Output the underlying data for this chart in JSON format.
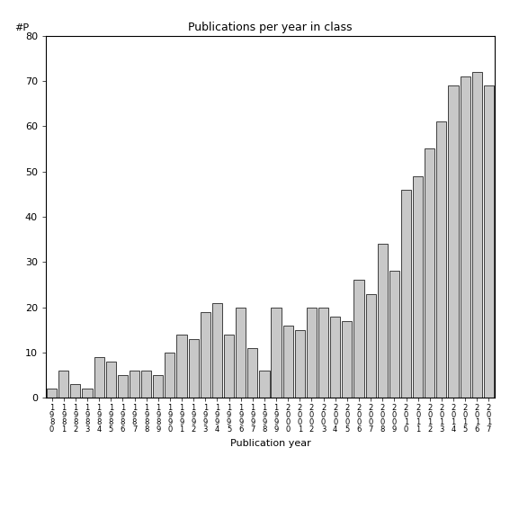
{
  "title": "Publications per year in class",
  "xlabel": "Publication year",
  "ylabel": "#P",
  "ylim": [
    0,
    80
  ],
  "yticks": [
    0,
    10,
    20,
    30,
    40,
    50,
    60,
    70,
    80
  ],
  "bar_color": "#c8c8c8",
  "bar_edge_color": "#000000",
  "bar_linewidth": 0.5,
  "years": [
    1980,
    1981,
    1982,
    1983,
    1984,
    1985,
    1986,
    1987,
    1988,
    1989,
    1990,
    1991,
    1992,
    1993,
    1994,
    1995,
    1996,
    1997,
    1998,
    1999,
    2000,
    2001,
    2002,
    2003,
    2004,
    2005,
    2006,
    2007,
    2008,
    2009,
    2010,
    2011,
    2012,
    2013,
    2014,
    2015,
    2016,
    2017
  ],
  "values": [
    2,
    6,
    3,
    2,
    9,
    8,
    5,
    6,
    6,
    5,
    10,
    14,
    13,
    19,
    21,
    14,
    20,
    11,
    6,
    20,
    16,
    15,
    20,
    20,
    18,
    17,
    26,
    23,
    34,
    28,
    46,
    49,
    55,
    61,
    69,
    71,
    72,
    69
  ]
}
